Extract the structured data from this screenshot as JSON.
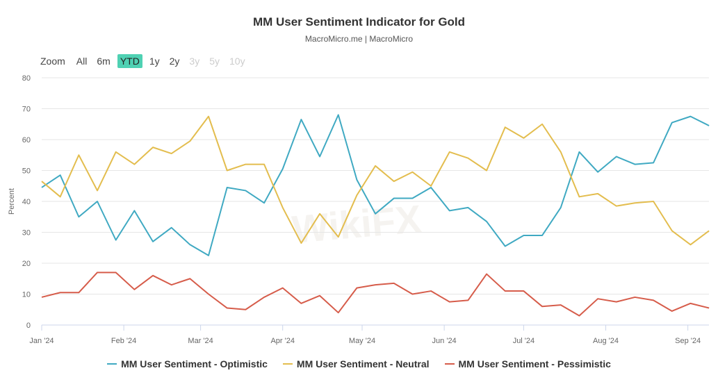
{
  "watermark": "WikiFX",
  "range_selector": {
    "label": "Zoom",
    "buttons": [
      {
        "label": "All",
        "state": "normal"
      },
      {
        "label": "6m",
        "state": "normal"
      },
      {
        "label": "YTD",
        "state": "selected"
      },
      {
        "label": "1y",
        "state": "normal"
      },
      {
        "label": "2y",
        "state": "normal"
      },
      {
        "label": "3y",
        "state": "disabled"
      },
      {
        "label": "5y",
        "state": "disabled"
      },
      {
        "label": "10y",
        "state": "disabled"
      }
    ]
  },
  "chart_data": {
    "type": "line",
    "title": "MM User Sentiment Indicator for Gold",
    "subtitle": "MacroMicro.me | MacroMicro",
    "ylabel": "Percent",
    "xlabel": "",
    "ylim": [
      0,
      80
    ],
    "yticks": [
      "0",
      "10",
      "20",
      "30",
      "40",
      "50",
      "60",
      "70",
      "80"
    ],
    "xticks": [
      {
        "label": "Jan '24",
        "date": "2024-01-01"
      },
      {
        "label": "Feb '24",
        "date": "2024-02-01"
      },
      {
        "label": "Mar '24",
        "date": "2024-03-01"
      },
      {
        "label": "Apr '24",
        "date": "2024-04-01"
      },
      {
        "label": "May '24",
        "date": "2024-05-01"
      },
      {
        "label": "Jun '24",
        "date": "2024-06-01"
      },
      {
        "label": "Jul '24",
        "date": "2024-07-01"
      },
      {
        "label": "Aug '24",
        "date": "2024-08-01"
      },
      {
        "label": "Sep '24",
        "date": "2024-09-01"
      }
    ],
    "x_start": "2024-01-01",
    "x_step_days": 7,
    "grid": true,
    "legend_position": "bottom",
    "series": [
      {
        "name": "MM User Sentiment - Optimistic",
        "color": "#3fa9c2",
        "values": [
          44.5,
          48.5,
          35,
          40,
          27.5,
          37,
          27,
          31.5,
          26,
          22.5,
          44.5,
          43.5,
          39.5,
          50.5,
          66.5,
          54.5,
          68,
          47,
          36,
          41,
          41,
          44.5,
          37,
          38,
          33.5,
          25.5,
          29,
          29,
          38,
          56,
          49.5,
          54.5,
          52,
          52.5,
          65.5,
          67.5,
          64.5
        ]
      },
      {
        "name": "MM User Sentiment - Neutral",
        "color": "#e3bd4e",
        "values": [
          46.5,
          41.5,
          55,
          43.5,
          56,
          52,
          57.5,
          55.5,
          59.5,
          67.5,
          50,
          52,
          52,
          38,
          26.5,
          36,
          28.5,
          42,
          51.5,
          46.5,
          49.5,
          45,
          56,
          54,
          50,
          64,
          60.5,
          65,
          56,
          41.5,
          42.5,
          38.5,
          39.5,
          40,
          30.5,
          26,
          30.5
        ]
      },
      {
        "name": "MM User Sentiment - Pessimistic",
        "color": "#d65c4a",
        "values": [
          9,
          10.5,
          10.5,
          17,
          17,
          11.5,
          16,
          13,
          15,
          10,
          5.5,
          5,
          9,
          12,
          7,
          9.5,
          4,
          12,
          13,
          13.5,
          10,
          11,
          7.5,
          8,
          16.5,
          11,
          11,
          6,
          6.5,
          3,
          8.5,
          7.5,
          9,
          8,
          4.5,
          7,
          5.5
        ]
      }
    ]
  }
}
